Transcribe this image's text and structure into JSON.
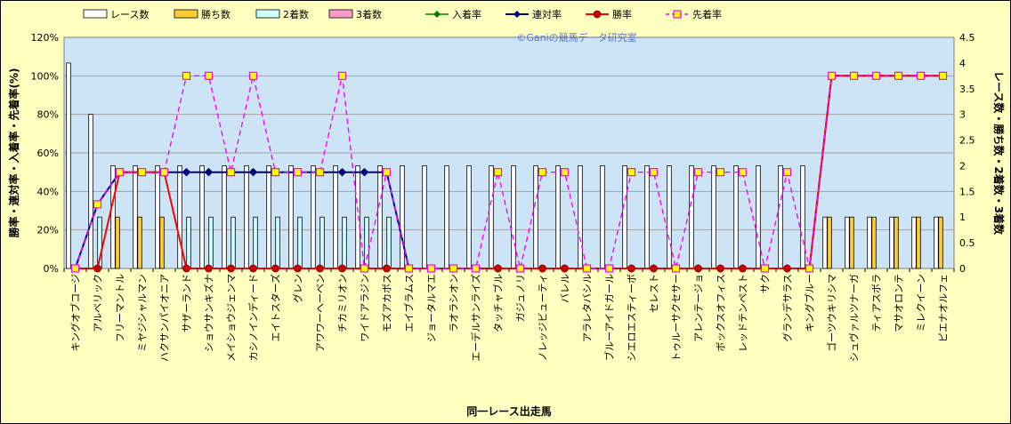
{
  "chart_data": {
    "type": "bar",
    "watermark": "©Ganiの競馬データ研究室",
    "xlabel": "同一レース出走馬",
    "ylabel_left": "勝率・連対率・入着率・先着率(%)",
    "ylabel_right": "レース数・勝ち数・2着数・3着数",
    "y_left_ticks": [
      "0%",
      "20%",
      "40%",
      "60%",
      "80%",
      "100%",
      "120%"
    ],
    "y_right_ticks": [
      "0",
      "0.5",
      "1",
      "1.5",
      "2",
      "2.5",
      "3",
      "3.5",
      "4",
      "4.5"
    ],
    "ylim_left": [
      0,
      120
    ],
    "ylim_right": [
      0,
      4.5
    ],
    "grid": true,
    "legend_position": "top",
    "categories": [
      "キングオブコージ",
      "アルベリック",
      "フリーマントル",
      "ミヤジシャルマン",
      "ハクサンパイオニア",
      "サザーランド",
      "ショウサンキズナ",
      "メイショウジェンマ",
      "カシノインディード",
      "エイトスターズ",
      "グレン",
      "アワワーヘーベン",
      "チカミリオン",
      "ワイドアラジン",
      "モズアカボス",
      "エイブラムス",
      "ジョータルマエ",
      "ラオラシオン",
      "エーデルサンライズ",
      "タッチャブル",
      "ガジュノリ",
      "ノレッジビューティ",
      "バレル",
      "アラレタバシル",
      "ブルーアイドガール",
      "シエロエスティーボ",
      "セレスト",
      "トゥルーサクセサー",
      "アレンテージョ",
      "ボックスオフィス",
      "レッドテンペスト",
      "サク",
      "グランデサラス",
      "キングブルー",
      "ゴーツウキリシマ",
      "シュヴァルツナーガ",
      "ティアスボラ",
      "マサオロンテ",
      "ミレクイーン",
      "ピエナオルフェ"
    ],
    "series": [
      {
        "name": "レース数",
        "kind": "bar",
        "color": "#ffffff",
        "values": [
          4,
          3,
          2,
          2,
          2,
          2,
          2,
          2,
          2,
          2,
          2,
          2,
          2,
          2,
          2,
          2,
          2,
          2,
          2,
          2,
          2,
          2,
          2,
          2,
          2,
          2,
          2,
          2,
          2,
          2,
          2,
          2,
          2,
          2,
          1,
          1,
          1,
          1,
          1,
          1
        ]
      },
      {
        "name": "勝ち数",
        "kind": "bar",
        "color": "#ffcc33",
        "values": [
          0,
          0,
          1,
          1,
          1,
          0,
          0,
          0,
          0,
          0,
          0,
          0,
          0,
          0,
          0,
          0,
          0,
          0,
          0,
          0,
          0,
          0,
          0,
          0,
          0,
          0,
          0,
          0,
          0,
          0,
          0,
          0,
          0,
          0,
          1,
          1,
          1,
          1,
          1,
          1
        ]
      },
      {
        "name": "2着数",
        "kind": "bar",
        "color": "#ccffff",
        "values": [
          0,
          1,
          0,
          0,
          0,
          1,
          1,
          1,
          1,
          1,
          1,
          1,
          1,
          1,
          1,
          0,
          0,
          0,
          0,
          0,
          0,
          0,
          0,
          0,
          0,
          0,
          0,
          0,
          0,
          0,
          0,
          0,
          0,
          0,
          0,
          0,
          0,
          0,
          0,
          0
        ]
      },
      {
        "name": "3着数",
        "kind": "bar",
        "color": "#ff99cc",
        "values": [
          0,
          0,
          0,
          0,
          0,
          0,
          0,
          0,
          0,
          0,
          0,
          0,
          0,
          0,
          0,
          0,
          0,
          0,
          0,
          0,
          0,
          0,
          0,
          0,
          0,
          0,
          0,
          0,
          0,
          0,
          0,
          0,
          0,
          0,
          0,
          0,
          0,
          0,
          0,
          0
        ]
      },
      {
        "name": "入着率",
        "kind": "line",
        "color": "#008000",
        "values": [
          0,
          33.3,
          50,
          50,
          50,
          50,
          50,
          50,
          50,
          50,
          50,
          50,
          50,
          50,
          50,
          0,
          0,
          0,
          0,
          0,
          0,
          0,
          0,
          0,
          0,
          0,
          0,
          0,
          0,
          0,
          0,
          0,
          0,
          0,
          100,
          100,
          100,
          100,
          100,
          100
        ]
      },
      {
        "name": "連対率",
        "kind": "line",
        "color": "#000080",
        "values": [
          0,
          33.3,
          50,
          50,
          50,
          50,
          50,
          50,
          50,
          50,
          50,
          50,
          50,
          50,
          50,
          0,
          0,
          0,
          0,
          0,
          0,
          0,
          0,
          0,
          0,
          0,
          0,
          0,
          0,
          0,
          0,
          0,
          0,
          0,
          100,
          100,
          100,
          100,
          100,
          100
        ]
      },
      {
        "name": "勝率",
        "kind": "line",
        "color": "#ff0000",
        "values": [
          0,
          0,
          50,
          50,
          50,
          0,
          0,
          0,
          0,
          0,
          0,
          0,
          0,
          0,
          0,
          0,
          0,
          0,
          0,
          0,
          0,
          0,
          0,
          0,
          0,
          0,
          0,
          0,
          0,
          0,
          0,
          0,
          0,
          0,
          100,
          100,
          100,
          100,
          100,
          100
        ]
      },
      {
        "name": "先着率",
        "kind": "line",
        "color": "#ff00ff",
        "values": [
          0,
          33.3,
          50,
          50,
          50,
          100,
          100,
          50,
          100,
          50,
          50,
          50,
          100,
          0,
          50,
          0,
          0,
          0,
          0,
          50,
          0,
          50,
          50,
          0,
          0,
          50,
          50,
          0,
          50,
          50,
          50,
          0,
          50,
          0,
          100,
          100,
          100,
          100,
          100,
          100
        ]
      }
    ]
  }
}
